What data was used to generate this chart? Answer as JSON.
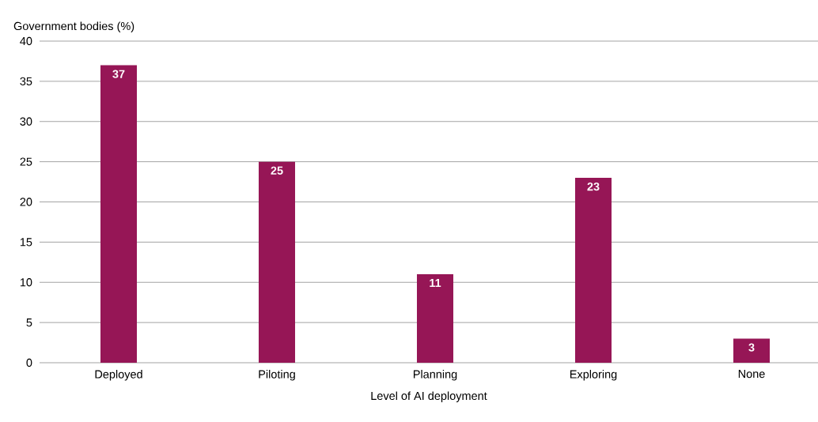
{
  "chart_data": {
    "type": "bar",
    "ylabel": "Government bodies (%)",
    "xlabel": "Level of AI deployment",
    "categories": [
      "Deployed",
      "Piloting",
      "Planning",
      "Exploring",
      "None"
    ],
    "values": [
      37,
      25,
      11,
      23,
      3
    ],
    "color": "#961656",
    "ylim": [
      0,
      40
    ],
    "yticks": [
      0,
      5,
      10,
      15,
      20,
      25,
      30,
      35,
      40
    ],
    "grid": "y",
    "data_labels": true
  }
}
